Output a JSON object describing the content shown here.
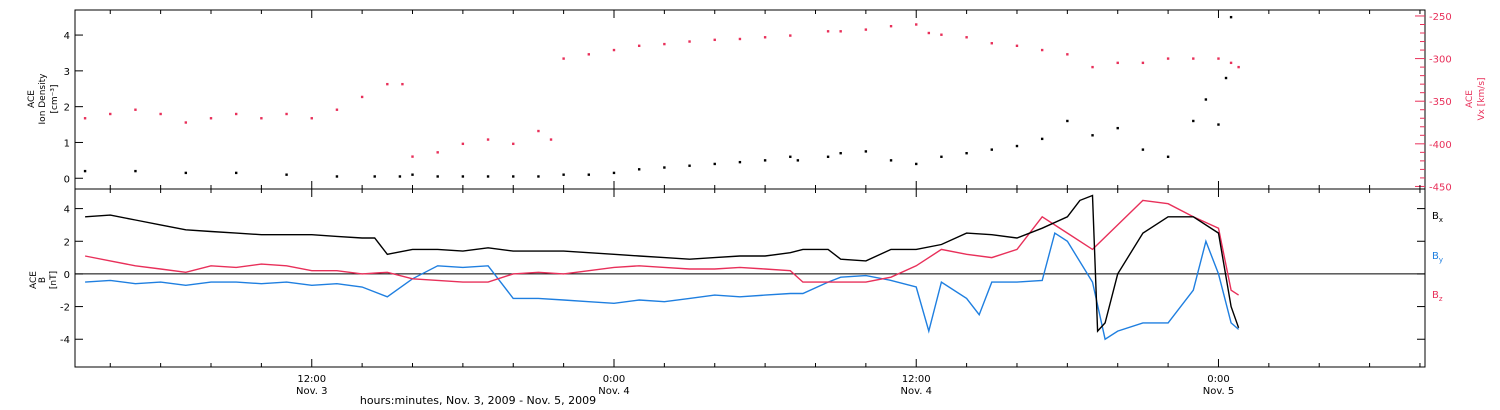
{
  "xaxis": {
    "title": "hours:minutes, Nov.  3, 2009 - Nov.  5, 2009",
    "ticks": [
      {
        "hour": 12,
        "time": "12:00",
        "day": "Nov. 3"
      },
      {
        "hour": 24,
        "time": "0:00",
        "day": "Nov. 4"
      },
      {
        "hour": 36,
        "time": "12:00",
        "day": "Nov. 4"
      },
      {
        "hour": 48,
        "time": "0:00",
        "day": "Nov. 5"
      }
    ],
    "range_hours": [
      2.6,
      56.2
    ]
  },
  "colors": {
    "black": "#000000",
    "red": "#e8305a",
    "blue": "#1f7fe0"
  },
  "chart_data": [
    {
      "type": "scatter",
      "panel": "top",
      "ylabel_left": [
        "ACE",
        "Ion Density",
        "[cm⁻³]"
      ],
      "ylabel_right": [
        "ACE",
        "Vx [km/s]"
      ],
      "ylim_left": [
        -0.3,
        4.7
      ],
      "ylim_right": [
        -453,
        -243
      ],
      "yticks_left": [
        "0",
        "1",
        "2",
        "3",
        "4"
      ],
      "yticks_right": [
        "-250",
        "-300",
        "-350",
        "-400",
        "-450"
      ],
      "series": [
        {
          "axis": "left",
          "color": "black",
          "points": [
            [
              3,
              0.2
            ],
            [
              5,
              0.2
            ],
            [
              7,
              0.15
            ],
            [
              9,
              0.15
            ],
            [
              11,
              0.1
            ],
            [
              13,
              0.05
            ],
            [
              14.5,
              0.05
            ],
            [
              15.5,
              0.05
            ],
            [
              16,
              0.1
            ],
            [
              17,
              0.05
            ],
            [
              18,
              0.05
            ],
            [
              19,
              0.05
            ],
            [
              20,
              0.05
            ],
            [
              21,
              0.05
            ],
            [
              22,
              0.1
            ],
            [
              23,
              0.1
            ],
            [
              24,
              0.15
            ],
            [
              25,
              0.25
            ],
            [
              26,
              0.3
            ],
            [
              27,
              0.35
            ],
            [
              28,
              0.4
            ],
            [
              29,
              0.45
            ],
            [
              30,
              0.5
            ],
            [
              31,
              0.6
            ],
            [
              31.3,
              0.5
            ],
            [
              32.5,
              0.6
            ],
            [
              33,
              0.7
            ],
            [
              34,
              0.75
            ],
            [
              35,
              0.5
            ],
            [
              36,
              0.4
            ],
            [
              37,
              0.6
            ],
            [
              38,
              0.7
            ],
            [
              39,
              0.8
            ],
            [
              40,
              0.9
            ],
            [
              41,
              1.1
            ],
            [
              42,
              1.6
            ],
            [
              43,
              1.2
            ],
            [
              44,
              1.4
            ],
            [
              45,
              0.8
            ],
            [
              46,
              0.6
            ],
            [
              47,
              1.6
            ],
            [
              47.5,
              2.2
            ],
            [
              48,
              1.5
            ],
            [
              48.3,
              2.8
            ],
            [
              48.5,
              4.5
            ]
          ]
        },
        {
          "axis": "right",
          "color": "red",
          "points": [
            [
              3,
              -370
            ],
            [
              4,
              -365
            ],
            [
              5,
              -360
            ],
            [
              6,
              -365
            ],
            [
              7,
              -375
            ],
            [
              8,
              -370
            ],
            [
              9,
              -365
            ],
            [
              10,
              -370
            ],
            [
              11,
              -365
            ],
            [
              12,
              -370
            ],
            [
              13,
              -360
            ],
            [
              14,
              -345
            ],
            [
              15,
              -330
            ],
            [
              15.6,
              -330
            ],
            [
              16,
              -415
            ],
            [
              17,
              -410
            ],
            [
              18,
              -400
            ],
            [
              19,
              -395
            ],
            [
              20,
              -400
            ],
            [
              21,
              -385
            ],
            [
              21.5,
              -395
            ],
            [
              22,
              -300
            ],
            [
              23,
              -295
            ],
            [
              24,
              -290
            ],
            [
              25,
              -285
            ],
            [
              26,
              -283
            ],
            [
              27,
              -280
            ],
            [
              28,
              -278
            ],
            [
              29,
              -277
            ],
            [
              30,
              -275
            ],
            [
              31,
              -273
            ],
            [
              32.5,
              -268
            ],
            [
              33,
              -268
            ],
            [
              34,
              -266
            ],
            [
              35,
              -262
            ],
            [
              36,
              -260
            ],
            [
              36.5,
              -270
            ],
            [
              37,
              -272
            ],
            [
              38,
              -275
            ],
            [
              39,
              -282
            ],
            [
              40,
              -285
            ],
            [
              41,
              -290
            ],
            [
              42,
              -295
            ],
            [
              43,
              -310
            ],
            [
              44,
              -305
            ],
            [
              45,
              -305
            ],
            [
              46,
              -300
            ],
            [
              47,
              -300
            ],
            [
              48,
              -300
            ],
            [
              48.5,
              -305
            ],
            [
              48.8,
              -310
            ]
          ]
        }
      ]
    },
    {
      "type": "line",
      "panel": "bottom",
      "ylabel": [
        "ACE",
        "B",
        "[nT]"
      ],
      "ylim": [
        -5.7,
        5.2
      ],
      "yticks": [
        "4",
        "2",
        "0",
        "-2",
        "-4"
      ],
      "zero_line": true,
      "legend": [
        {
          "label": "Bx",
          "main": "B",
          "sub": "x",
          "color": "black"
        },
        {
          "label": "By",
          "main": "B",
          "sub": "y",
          "color": "blue"
        },
        {
          "label": "Bz",
          "main": "B",
          "sub": "z",
          "color": "red"
        }
      ],
      "series": [
        {
          "name": "Bx",
          "color": "black",
          "points": [
            [
              3,
              3.5
            ],
            [
              4,
              3.6
            ],
            [
              5,
              3.3
            ],
            [
              6,
              3.0
            ],
            [
              7,
              2.7
            ],
            [
              8,
              2.6
            ],
            [
              9,
              2.5
            ],
            [
              10,
              2.4
            ],
            [
              11,
              2.4
            ],
            [
              12,
              2.4
            ],
            [
              13,
              2.3
            ],
            [
              14,
              2.2
            ],
            [
              14.5,
              2.2
            ],
            [
              15,
              1.2
            ],
            [
              16,
              1.5
            ],
            [
              17,
              1.5
            ],
            [
              18,
              1.4
            ],
            [
              19,
              1.6
            ],
            [
              20,
              1.4
            ],
            [
              21,
              1.4
            ],
            [
              22,
              1.4
            ],
            [
              23,
              1.3
            ],
            [
              24,
              1.2
            ],
            [
              25,
              1.1
            ],
            [
              26,
              1.0
            ],
            [
              27,
              0.9
            ],
            [
              28,
              1.0
            ],
            [
              29,
              1.1
            ],
            [
              30,
              1.1
            ],
            [
              31,
              1.3
            ],
            [
              31.5,
              1.5
            ],
            [
              32.5,
              1.5
            ],
            [
              33,
              0.9
            ],
            [
              34,
              0.8
            ],
            [
              35,
              1.5
            ],
            [
              36,
              1.5
            ],
            [
              37,
              1.8
            ],
            [
              38,
              2.5
            ],
            [
              39,
              2.4
            ],
            [
              40,
              2.2
            ],
            [
              41,
              2.8
            ],
            [
              42,
              3.5
            ],
            [
              42.5,
              4.5
            ],
            [
              43,
              4.8
            ],
            [
              43.2,
              -3.5
            ],
            [
              43.5,
              -3.0
            ],
            [
              44,
              0.0
            ],
            [
              45,
              2.5
            ],
            [
              46,
              3.5
            ],
            [
              47,
              3.5
            ],
            [
              48,
              2.5
            ],
            [
              48.5,
              -2.0
            ],
            [
              48.8,
              -3.3
            ]
          ]
        },
        {
          "name": "By",
          "color": "blue",
          "points": [
            [
              3,
              -0.5
            ],
            [
              4,
              -0.4
            ],
            [
              5,
              -0.6
            ],
            [
              6,
              -0.5
            ],
            [
              7,
              -0.7
            ],
            [
              8,
              -0.5
            ],
            [
              9,
              -0.5
            ],
            [
              10,
              -0.6
            ],
            [
              11,
              -0.5
            ],
            [
              12,
              -0.7
            ],
            [
              13,
              -0.6
            ],
            [
              14,
              -0.8
            ],
            [
              15,
              -1.4
            ],
            [
              16,
              -0.3
            ],
            [
              17,
              0.5
            ],
            [
              18,
              0.4
            ],
            [
              19,
              0.5
            ],
            [
              20,
              -1.5
            ],
            [
              21,
              -1.5
            ],
            [
              22,
              -1.6
            ],
            [
              23,
              -1.7
            ],
            [
              24,
              -1.8
            ],
            [
              25,
              -1.6
            ],
            [
              26,
              -1.7
            ],
            [
              27,
              -1.5
            ],
            [
              28,
              -1.3
            ],
            [
              29,
              -1.4
            ],
            [
              30,
              -1.3
            ],
            [
              31,
              -1.2
            ],
            [
              31.5,
              -1.2
            ],
            [
              32.5,
              -0.5
            ],
            [
              33,
              -0.2
            ],
            [
              34,
              -0.1
            ],
            [
              35,
              -0.4
            ],
            [
              36,
              -0.8
            ],
            [
              36.5,
              -3.5
            ],
            [
              37,
              -0.5
            ],
            [
              38,
              -1.5
            ],
            [
              38.5,
              -2.5
            ],
            [
              39,
              -0.5
            ],
            [
              40,
              -0.5
            ],
            [
              41,
              -0.4
            ],
            [
              41.5,
              2.5
            ],
            [
              42,
              2.0
            ],
            [
              43,
              -0.5
            ],
            [
              43.5,
              -4.0
            ],
            [
              44,
              -3.5
            ],
            [
              45,
              -3.0
            ],
            [
              46,
              -3.0
            ],
            [
              47,
              -1.0
            ],
            [
              47.5,
              2.0
            ],
            [
              48,
              0.0
            ],
            [
              48.5,
              -3.0
            ],
            [
              48.8,
              -3.4
            ]
          ]
        },
        {
          "name": "Bz",
          "color": "red",
          "points": [
            [
              3,
              1.1
            ],
            [
              4,
              0.8
            ],
            [
              5,
              0.5
            ],
            [
              6,
              0.3
            ],
            [
              7,
              0.1
            ],
            [
              8,
              0.5
            ],
            [
              9,
              0.4
            ],
            [
              10,
              0.6
            ],
            [
              11,
              0.5
            ],
            [
              12,
              0.2
            ],
            [
              13,
              0.2
            ],
            [
              14,
              0.0
            ],
            [
              15,
              0.1
            ],
            [
              16,
              -0.3
            ],
            [
              17,
              -0.4
            ],
            [
              18,
              -0.5
            ],
            [
              19,
              -0.5
            ],
            [
              20,
              0.0
            ],
            [
              21,
              0.1
            ],
            [
              22,
              0.0
            ],
            [
              23,
              0.2
            ],
            [
              24,
              0.4
            ],
            [
              25,
              0.5
            ],
            [
              26,
              0.4
            ],
            [
              27,
              0.3
            ],
            [
              28,
              0.3
            ],
            [
              29,
              0.4
            ],
            [
              30,
              0.3
            ],
            [
              31,
              0.2
            ],
            [
              31.5,
              -0.5
            ],
            [
              32.5,
              -0.5
            ],
            [
              33,
              -0.5
            ],
            [
              34,
              -0.5
            ],
            [
              35,
              -0.2
            ],
            [
              36,
              0.5
            ],
            [
              37,
              1.5
            ],
            [
              38,
              1.2
            ],
            [
              39,
              1.0
            ],
            [
              40,
              1.5
            ],
            [
              41,
              3.5
            ],
            [
              42,
              2.5
            ],
            [
              43,
              1.5
            ],
            [
              44,
              3.0
            ],
            [
              45,
              4.5
            ],
            [
              46,
              4.3
            ],
            [
              47,
              3.5
            ],
            [
              48,
              2.8
            ],
            [
              48.5,
              -1.0
            ],
            [
              48.8,
              -1.3
            ]
          ]
        }
      ]
    }
  ]
}
